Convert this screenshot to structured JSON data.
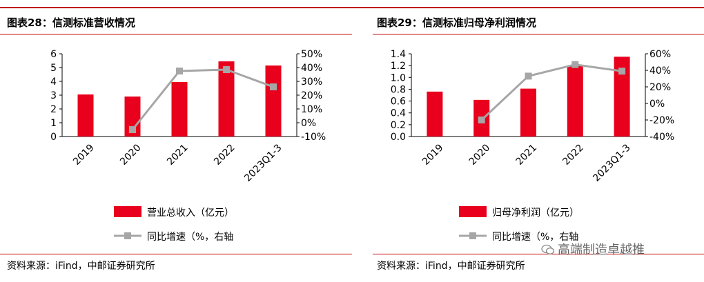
{
  "panels": [
    {
      "title": "图表28：信测标准营收情况",
      "source": "资料来源：iFind，中邮证券研究所",
      "chart_data": {
        "type": "bar",
        "categories": [
          "2019",
          "2020",
          "2021",
          "2022",
          "2023Q1-3"
        ],
        "series": [
          {
            "name": "营业总收入（亿元）",
            "type": "bar",
            "axis": "left",
            "color": "#e8001c",
            "values": [
              3.05,
              2.9,
              3.95,
              5.45,
              5.15
            ]
          },
          {
            "name": "同比增速（%，右轴",
            "type": "line",
            "axis": "right",
            "color": "#a6a6a6",
            "values": [
              null,
              -5,
              37.5,
              38.5,
              26
            ]
          }
        ],
        "ylim_left": [
          0,
          6
        ],
        "yticks_left": [
          "0",
          "1",
          "2",
          "3",
          "4",
          "5",
          "6"
        ],
        "ylim_right": [
          -10,
          50
        ],
        "yticks_right": [
          "-10%",
          "0%",
          "10%",
          "20%",
          "30%",
          "40%",
          "50%"
        ],
        "legend_position": "bottom"
      }
    },
    {
      "title": "图表29：信测标准归母净利润情况",
      "source": "资料来源：iFind，中邮证券研究所",
      "chart_data": {
        "type": "bar",
        "categories": [
          "2019",
          "2020",
          "2021",
          "2022",
          "2023Q1-3"
        ],
        "series": [
          {
            "name": "归母净利润（亿元）",
            "type": "bar",
            "axis": "left",
            "color": "#e8001c",
            "values": [
              0.76,
              0.62,
              0.81,
              1.2,
              1.35
            ]
          },
          {
            "name": "同比增速（%，右轴",
            "type": "line",
            "axis": "right",
            "color": "#a6a6a6",
            "values": [
              null,
              -20,
              33,
              47,
              39
            ]
          }
        ],
        "ylim_left": [
          0,
          1.4
        ],
        "yticks_left": [
          "0.0",
          "0.2",
          "0.4",
          "0.6",
          "0.8",
          "1.0",
          "1.2",
          "1.4"
        ],
        "ylim_right": [
          -40,
          60
        ],
        "yticks_right": [
          "-40%",
          "-20%",
          "0%",
          "20%",
          "40%",
          "60%"
        ],
        "legend_position": "bottom"
      }
    }
  ],
  "watermark": "高端制造卓越推"
}
